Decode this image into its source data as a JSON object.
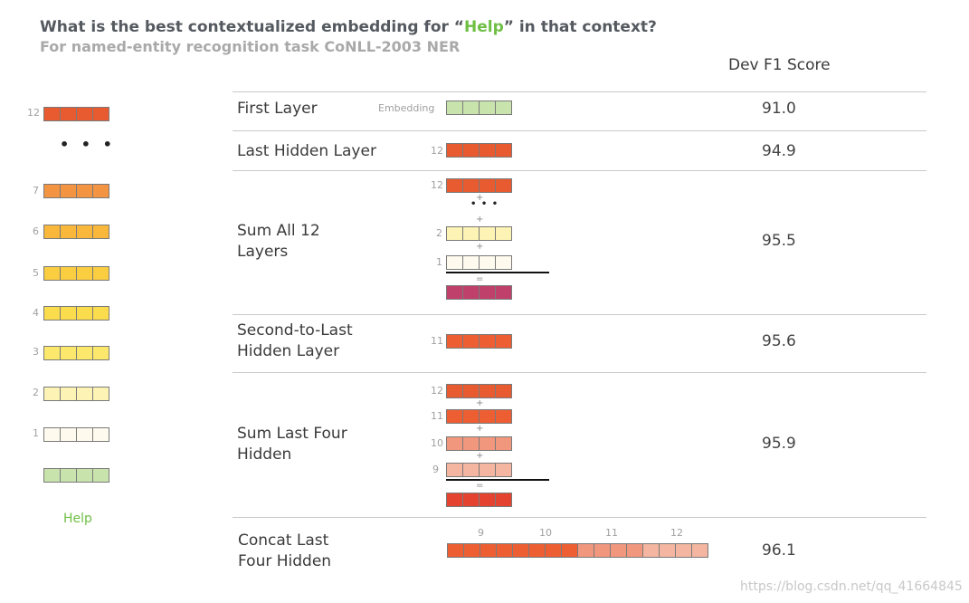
{
  "title": {
    "prefix": "What is the best contextualized embedding for “",
    "keyword": "Help",
    "suffix": "” in that context?"
  },
  "subtitle": "For named-entity recognition task CoNLL-2003 NER",
  "column_header": "Dev F1 Score",
  "colors": {
    "embedding": "#c9e3ad",
    "l1": "#fefbee",
    "l2": "#fdf3b5",
    "l3": "#fbe86c",
    "l4": "#fbdc4c",
    "l5": "#fbcd40",
    "l6": "#f9b73c",
    "l7": "#f29442",
    "l9": "#f4b6a0",
    "l10": "#f1977e",
    "l11": "#ee5e33",
    "l12": "#e85b30",
    "sum_all": "#c0406c",
    "sum_four": "#e4432f"
  },
  "left_stack": {
    "labels": {
      "l12": "12",
      "l7": "7",
      "l6": "6",
      "l5": "5",
      "l4": "4",
      "l3": "3",
      "l2": "2",
      "l1": "1"
    },
    "word": "Help"
  },
  "rows": [
    {
      "label": "First Layer",
      "score": "91.0",
      "vec_label": "Embedding"
    },
    {
      "label": "Last Hidden Layer",
      "score": "94.9",
      "vec_label": "12"
    },
    {
      "label_line1": "Sum All 12",
      "label_line2": "Layers",
      "score": "95.5",
      "labels": [
        "12",
        "2",
        "1"
      ]
    },
    {
      "label_line1": "Second-to-Last",
      "label_line2": "Hidden Layer",
      "score": "95.6",
      "vec_label": "11"
    },
    {
      "label_line1": "Sum Last Four",
      "label_line2": "Hidden",
      "score": "95.9",
      "labels": [
        "12",
        "11",
        "10",
        "9"
      ]
    },
    {
      "label_line1": "Concat Last",
      "label_line2": "Four Hidden",
      "score": "96.1",
      "labels": [
        "9",
        "10",
        "11",
        "12"
      ]
    }
  ],
  "symbols": {
    "plus": "+",
    "equals": "=",
    "ellipsis": "• • •"
  },
  "watermark": "https://blog.csdn.net/qq_41664845"
}
